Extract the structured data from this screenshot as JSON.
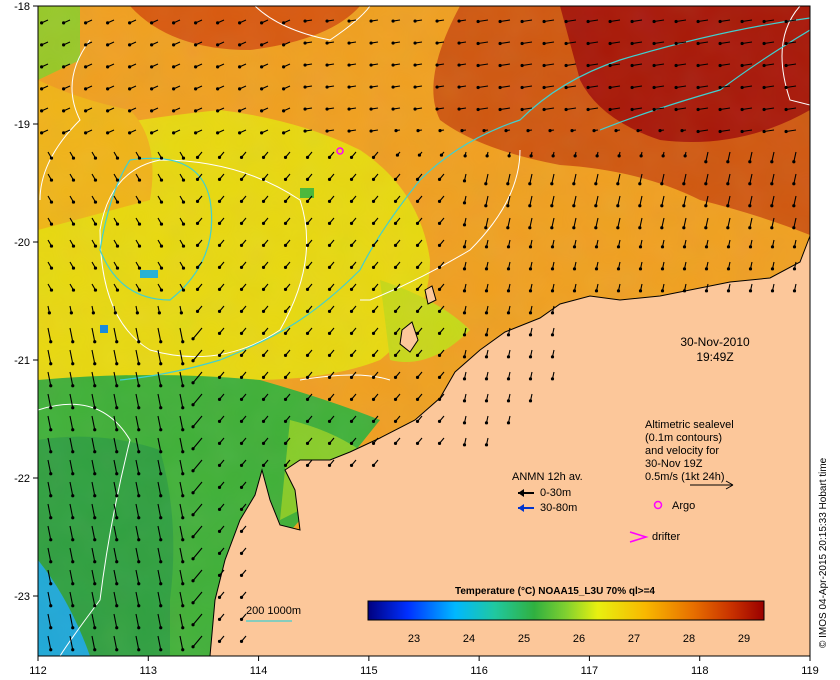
{
  "map": {
    "x_ticks": [
      "112",
      "113",
      "114",
      "115",
      "116",
      "117",
      "118",
      "119"
    ],
    "y_ticks": [
      "-18",
      "-19",
      "-20",
      "-21",
      "-22",
      "-23"
    ],
    "land_color": "#fcc79a",
    "date": "30-Nov-2010",
    "time": "19:49Z",
    "credit": "© IMOS 04-Apr-2015 20:15:33 Hobart time"
  },
  "notes": {
    "altimetry": [
      "Altimetric sealevel",
      "(0.1m contours)",
      "and velocity for",
      "30-Nov 19Z",
      "0.5m/s (1kt 24h)"
    ],
    "anmn_title": "ANMN 12h av.",
    "anmn_shallow": "0-30m",
    "anmn_deep": "30-80m",
    "argo": "Argo",
    "drifter": "drifter",
    "isobath": "200  1000m"
  },
  "colorbar": {
    "title": "Temperature (°C) NOAA15_L3U 70% ql>=4",
    "ticks": [
      "23",
      "24",
      "25",
      "26",
      "27",
      "28",
      "29"
    ],
    "colors": [
      "#00007f",
      "#0000d0",
      "#0050ff",
      "#00a8ff",
      "#10e0e8",
      "#30c890",
      "#28b048",
      "#58c830",
      "#a8e028",
      "#e8f010",
      "#f8d000",
      "#f0a000",
      "#e87800",
      "#d85000",
      "#c02800",
      "#9a0000"
    ]
  }
}
